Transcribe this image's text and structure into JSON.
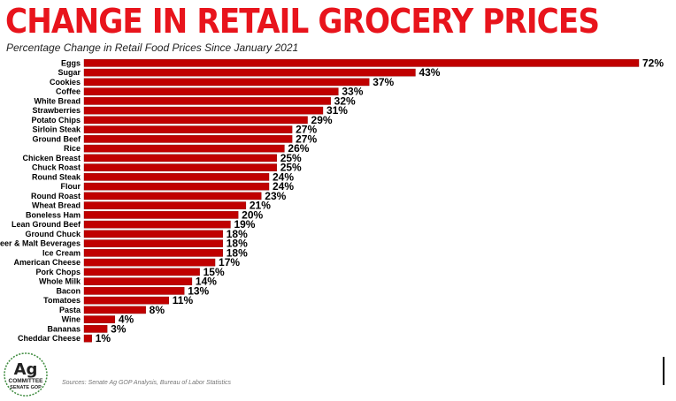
{
  "page": {
    "title": "CHANGE IN RETAIL GROCERY PRICES",
    "subtitle": "Percentage Change in Retail Food Prices Since January 2021",
    "source": "Sources: Senate Ag GOP Analysis, Bureau of Labor Statistics",
    "logo": {
      "line1": "Ag",
      "line2": "COMMITTEE",
      "line3": "SENATE GOP"
    }
  },
  "colors": {
    "title": "#e8141c",
    "bar": "#c00000",
    "bar_border": "#8c0000",
    "logo_green": "#3d8b3d"
  },
  "chart_data": {
    "type": "bar",
    "orientation": "horizontal",
    "title": "CHANGE IN RETAIL GROCERY PRICES",
    "subtitle": "Percentage Change in Retail Food Prices Since January 2021",
    "xlabel": "",
    "ylabel": "",
    "unit": "%",
    "xlim": [
      0,
      72
    ],
    "grid": false,
    "legend": "none",
    "categories": [
      "Eggs",
      "Sugar",
      "Cookies",
      "Coffee",
      "White Bread",
      "Strawberries",
      "Potato Chips",
      "Sirloin Steak",
      "Ground Beef",
      "Rice",
      "Chicken Breast",
      "Chuck Roast",
      "Round Steak",
      "Flour",
      "Round Roast",
      "Wheat Bread",
      "Boneless Ham",
      "Lean Ground Beef",
      "Ground Chuck",
      "Beer & Malt Beverages",
      "Ice Cream",
      "American Cheese",
      "Pork Chops",
      "Whole Milk",
      "Bacon",
      "Tomatoes",
      "Pasta",
      "Wine",
      "Bananas",
      "Cheddar Cheese"
    ],
    "values": [
      72,
      43,
      37,
      33,
      32,
      31,
      29,
      27,
      27,
      26,
      25,
      25,
      24,
      24,
      23,
      21,
      20,
      19,
      18,
      18,
      18,
      17,
      15,
      14,
      13,
      11,
      8,
      4,
      3,
      1
    ],
    "labels": [
      "72%",
      "43%",
      "37%",
      "33%",
      "32%",
      "31%",
      "29%",
      "27%",
      "27%",
      "26%",
      "25%",
      "25%",
      "24%",
      "24%",
      "23%",
      "21%",
      "20%",
      "19%",
      "18%",
      "18%",
      "18%",
      "17%",
      "15%",
      "14%",
      "13%",
      "11%",
      "8%",
      "4%",
      "3%",
      "1%"
    ]
  }
}
